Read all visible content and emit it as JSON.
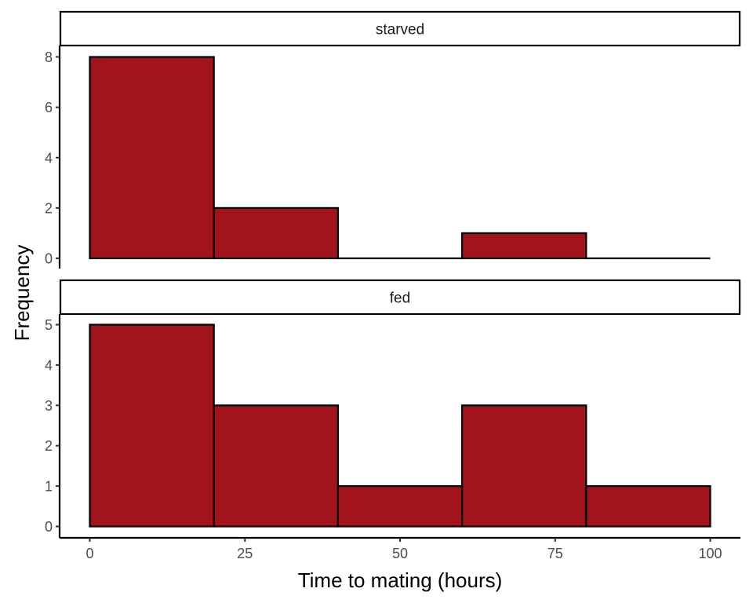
{
  "chart_data": {
    "type": "bar",
    "subtype": "faceted-histogram",
    "xlabel": "Time to mating (hours)",
    "ylabel": "Frequency",
    "xlim": [
      -5,
      105
    ],
    "x_ticks": [
      0,
      25,
      50,
      75,
      100
    ],
    "bins": [
      [
        0,
        20
      ],
      [
        20,
        40
      ],
      [
        40,
        60
      ],
      [
        60,
        80
      ],
      [
        80,
        100
      ]
    ],
    "fill_color": "#a2141c",
    "outline_color": "#000000",
    "grid": false,
    "panels": [
      {
        "name": "starved",
        "strip_label": "starved",
        "values": [
          8,
          2,
          0,
          1,
          0
        ],
        "ylim": [
          0,
          8
        ],
        "y_ticks": [
          0,
          2,
          4,
          6,
          8
        ]
      },
      {
        "name": "fed",
        "strip_label": "fed",
        "values": [
          5,
          3,
          1,
          3,
          1
        ],
        "ylim": [
          0,
          5
        ],
        "y_ticks": [
          0,
          1,
          2,
          3,
          4,
          5
        ]
      }
    ]
  }
}
